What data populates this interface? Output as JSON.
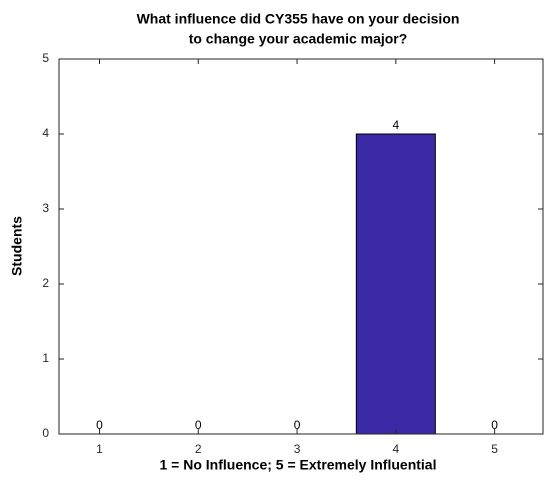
{
  "chart_data": {
    "type": "bar",
    "title": [
      "What influence did CY355 have on your decision",
      "to change your academic major?"
    ],
    "x_label": "1 = No Influence; 5 = Extremely Influential",
    "y_label": "Students",
    "x": [
      1,
      2,
      3,
      4,
      5
    ],
    "values": [
      0,
      0,
      0,
      4,
      0
    ],
    "color": "#3a2aa6",
    "xlim": [
      0.59,
      5.49
    ],
    "xticks": [
      1,
      2,
      3,
      4,
      5
    ],
    "ylim": [
      0,
      5
    ],
    "yticks": [
      0,
      1,
      2,
      3,
      4,
      5
    ]
  }
}
